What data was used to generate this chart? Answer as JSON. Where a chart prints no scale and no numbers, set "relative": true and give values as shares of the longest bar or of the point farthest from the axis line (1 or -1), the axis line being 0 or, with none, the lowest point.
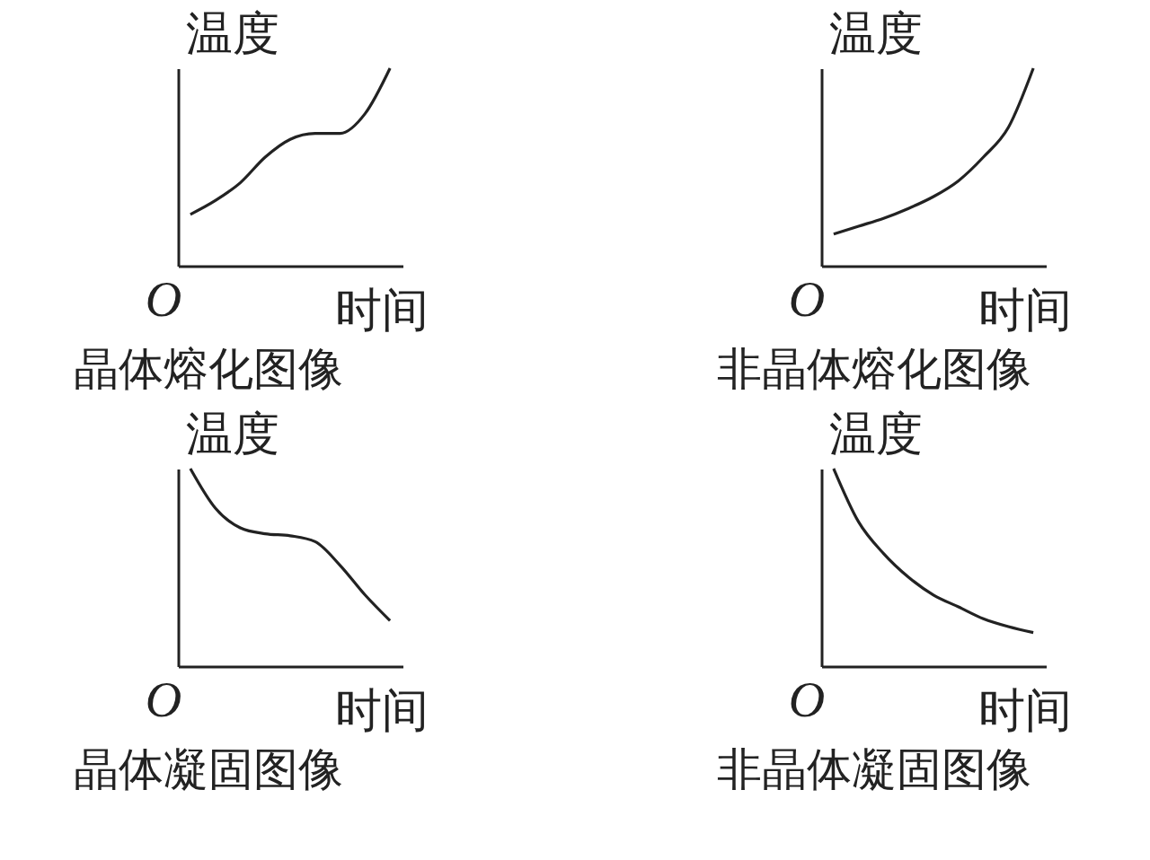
{
  "chart_data": [
    {
      "type": "line",
      "title": "晶体熔化图像",
      "xlabel": "时间",
      "ylabel": "温度",
      "relative": true,
      "tick_labels": false,
      "annotations": [
        "O"
      ],
      "categories": [
        null,
        null,
        null,
        null,
        null,
        null,
        null,
        null,
        null
      ],
      "series": [
        {
          "color": "#222222",
          "values": [
            0.26,
            0.33,
            0.42,
            0.55,
            0.64,
            0.67,
            0.67,
            0.77,
            1
          ]
        }
      ]
    },
    {
      "type": "line",
      "title": "非晶体熔化图像",
      "xlabel": "时间",
      "ylabel": "温度",
      "relative": true,
      "tick_labels": false,
      "annotations": [
        "O"
      ],
      "categories": [
        null,
        null,
        null,
        null,
        null,
        null,
        null,
        null,
        null
      ],
      "series": [
        {
          "color": "#222222",
          "values": [
            0.16,
            0.2,
            0.24,
            0.29,
            0.35,
            0.43,
            0.55,
            0.7,
            1
          ]
        }
      ]
    },
    {
      "type": "line",
      "title": "晶体凝固图像",
      "xlabel": "时间",
      "ylabel": "温度",
      "relative": true,
      "tick_labels": false,
      "annotations": [
        "O"
      ],
      "categories": [
        null,
        null,
        null,
        null,
        null,
        null,
        null,
        null,
        null
      ],
      "series": [
        {
          "color": "#222222",
          "values": [
            1,
            0.8,
            0.7,
            0.67,
            0.66,
            0.63,
            0.51,
            0.36,
            0.23
          ]
        }
      ]
    },
    {
      "type": "line",
      "title": "非晶体凝固图像",
      "xlabel": "时间",
      "ylabel": "温度",
      "relative": true,
      "tick_labels": false,
      "annotations": [
        "O"
      ],
      "categories": [
        null,
        null,
        null,
        null,
        null,
        null,
        null,
        null,
        null
      ],
      "series": [
        {
          "color": "#222222",
          "values": [
            1,
            0.73,
            0.57,
            0.45,
            0.36,
            0.3,
            0.24,
            0.2,
            0.17
          ]
        }
      ]
    }
  ]
}
